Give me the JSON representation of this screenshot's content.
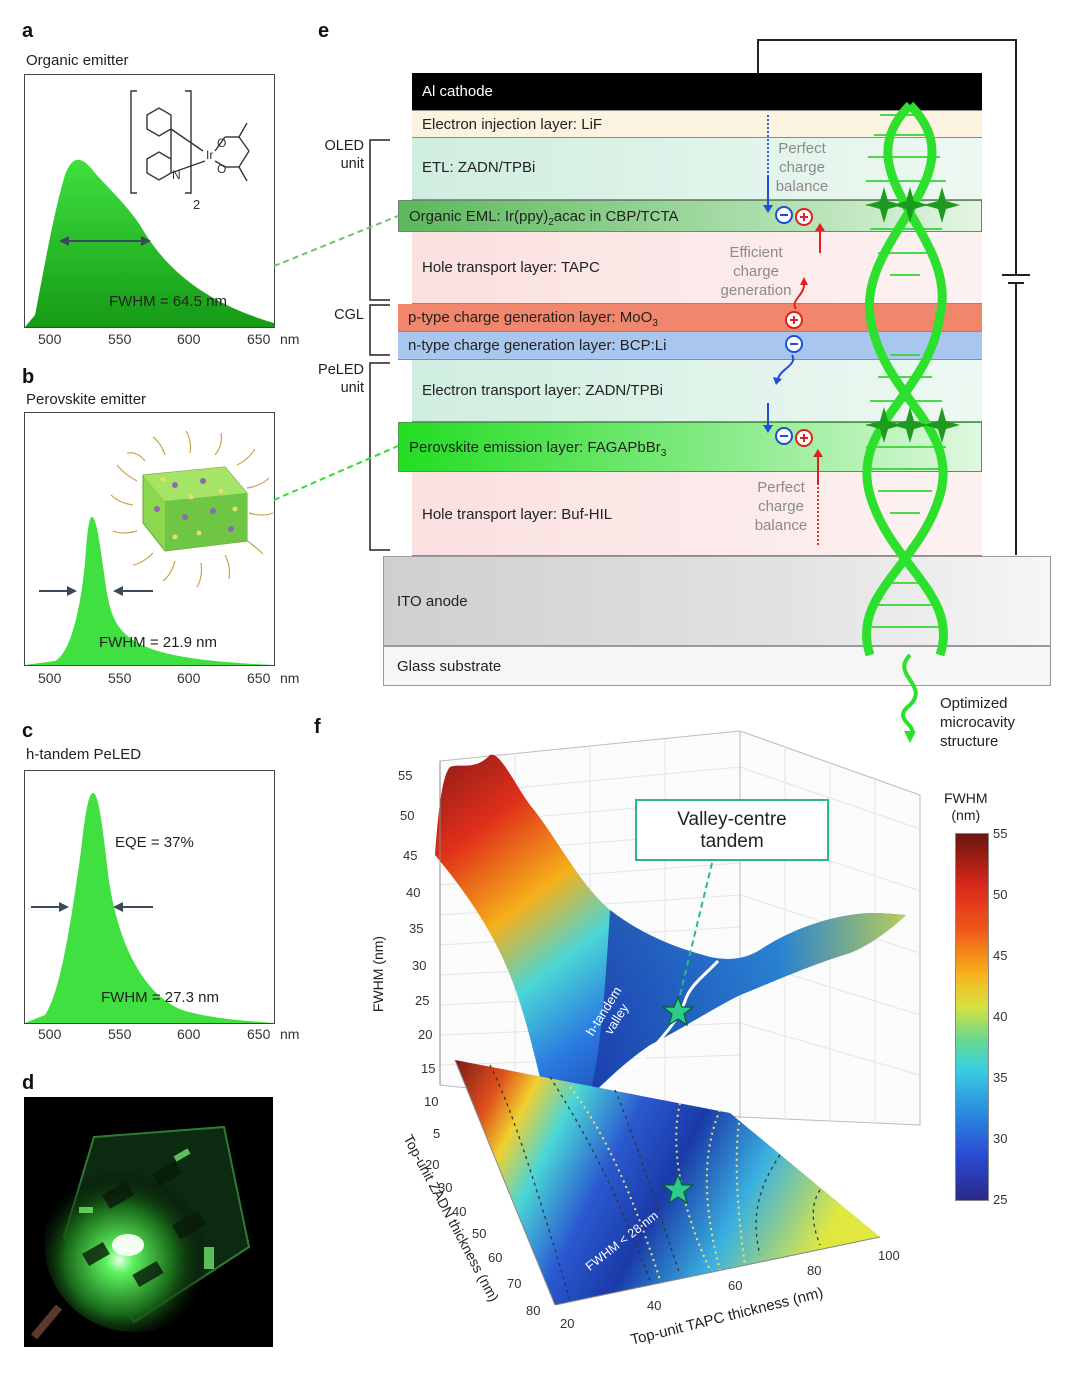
{
  "panels": {
    "a": {
      "label": "a",
      "title": "Organic emitter",
      "fwhm": "FWHM = 64.5 nm",
      "subscript": "2"
    },
    "b": {
      "label": "b",
      "title": "Perovskite emitter",
      "fwhm": "FWHM = 21.9 nm"
    },
    "c": {
      "label": "c",
      "title": "h-tandem PeLED",
      "eqe": "EQE = 37%",
      "fwhm": "FWHM = 27.3 nm"
    },
    "d": {
      "label": "d"
    },
    "e": {
      "label": "e"
    },
    "f": {
      "label": "f"
    }
  },
  "spectra_axis": {
    "ticks": [
      "500",
      "550",
      "600",
      "650"
    ],
    "unit": "nm"
  },
  "device": {
    "layers": [
      {
        "id": "cathode",
        "label": "Al cathode",
        "color": "#000000"
      },
      {
        "id": "eil",
        "label": "Electron injection layer: LiF",
        "color": "#fbf3e0"
      },
      {
        "id": "etl1",
        "label": "ETL: ZADN/TPBi",
        "color": "#d9f0e8"
      },
      {
        "id": "oeml",
        "label_pre": "Organic EML: Ir(ppy)",
        "label_sub": "2",
        "label_post": "acac in CBP/TCTA",
        "color": "#6cc46c"
      },
      {
        "id": "htl1",
        "label": "Hole transport layer: TAPC",
        "color": "#fbe4e4"
      },
      {
        "id": "pcgl",
        "label_pre": "p-type charge generation layer: MoO",
        "label_sub": "3",
        "label_post": "",
        "color": "#f0866c"
      },
      {
        "id": "ncgl",
        "label": "n-type charge generation layer: BCP:Li",
        "color": "#a9c6ef"
      },
      {
        "id": "etl2",
        "label": "Electron transport layer: ZADN/TPBi",
        "color": "#d9f0e8"
      },
      {
        "id": "peml",
        "label_pre": "Perovskite emission layer: FAGAPbBr",
        "label_sub": "3",
        "label_post": "",
        "color": "#2ee02e"
      },
      {
        "id": "htl2",
        "label": "Hole transport layer: Buf-HIL",
        "color": "#fbe4e4"
      },
      {
        "id": "ito",
        "label": "ITO anode",
        "color": "#d4d4d4"
      },
      {
        "id": "glass",
        "label": "Glass substrate",
        "color": "#f4f4f4"
      }
    ],
    "units": {
      "oled": "OLED\nunit",
      "cgl": "CGL",
      "peled": "PeLED\nunit"
    },
    "annotations": {
      "balance_top": "Perfect\ncharge\nbalance",
      "generation": "Efficient\ncharge\ngeneration",
      "balance_bottom": "Perfect\ncharge\nbalance",
      "microcavity": "Optimized\nmicrocavity\nstructure"
    },
    "colors": {
      "electron": "#1f4fd8",
      "hole": "#e02020",
      "helix": "#2ee02e"
    }
  },
  "chart_data": {
    "type": "surface",
    "zlabel": "FWHM (nm)",
    "xlabel": "Top-unit TAPC thickness (nm)",
    "ylabel": "Top-unit ZADN thickness (nm)",
    "x_ticks": [
      "20",
      "40",
      "60",
      "80",
      "100"
    ],
    "y_ticks": [
      "20",
      "30",
      "40",
      "50",
      "60",
      "70",
      "80"
    ],
    "z_ticks": [
      "5",
      "10",
      "15",
      "20",
      "25",
      "30",
      "35",
      "40",
      "45",
      "50",
      "55"
    ],
    "colorbar": {
      "title": "FWHM\n(nm)",
      "ticks": [
        "55",
        "50",
        "45",
        "40",
        "35",
        "30",
        "25"
      ],
      "range": [
        25,
        55
      ]
    },
    "callout": "Valley-centre\ntandem",
    "valley_label": "h-tandem\nvalley",
    "contour_label": "FWHM < 28 nm"
  }
}
